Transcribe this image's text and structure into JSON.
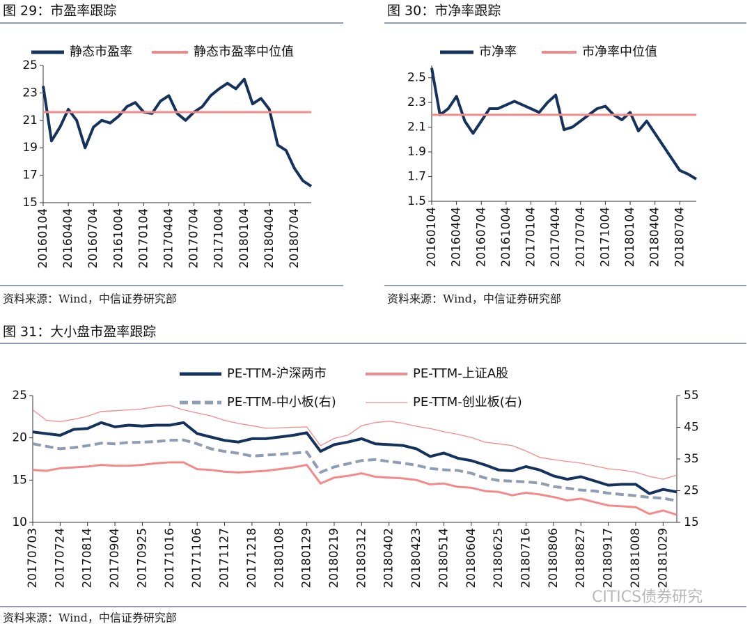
{
  "chart_data": [
    {
      "type": "line",
      "title": "图 29：市盈率跟踪",
      "categories": [
        "20160104",
        null,
        null,
        "20160404",
        null,
        null,
        "20160704",
        null,
        null,
        "20161004",
        null,
        null,
        "20170104",
        null,
        null,
        "20170404",
        null,
        null,
        "20170704",
        null,
        null,
        "20171004",
        null,
        null,
        "20180104",
        null,
        null,
        "20180404",
        null,
        null,
        "20180704",
        null,
        null
      ],
      "series": [
        {
          "name": "静态市盈率",
          "color": "#14325c",
          "values": [
            23.5,
            19.5,
            20.5,
            21.8,
            21.0,
            19.0,
            20.5,
            21.0,
            20.8,
            21.3,
            22.0,
            22.3,
            21.6,
            21.5,
            22.4,
            22.8,
            21.5,
            21.0,
            21.6,
            22.0,
            22.8,
            23.3,
            23.7,
            23.3,
            24.0,
            22.2,
            22.6,
            21.8,
            19.2,
            18.8,
            17.5,
            16.6,
            16.2
          ]
        },
        {
          "name": "静态市盈率中位值",
          "color": "#f4898a",
          "value": 21.6
        }
      ],
      "ylim": [
        15,
        25
      ],
      "yticks": [
        15,
        17,
        19,
        21,
        23,
        25
      ],
      "source": "资料来源：Wind，中信证券研究部"
    },
    {
      "type": "line",
      "title": "图 30：市净率跟踪",
      "categories": [
        "20160104",
        null,
        null,
        "20160404",
        null,
        null,
        "20160704",
        null,
        null,
        "20161004",
        null,
        null,
        "20170104",
        null,
        null,
        "20170404",
        null,
        null,
        "20170704",
        null,
        null,
        "20171004",
        null,
        null,
        "20180104",
        null,
        null,
        "20180404",
        null,
        null,
        "20180704",
        null,
        null
      ],
      "series": [
        {
          "name": "市净率",
          "color": "#14325c",
          "values": [
            2.58,
            2.2,
            2.25,
            2.35,
            2.15,
            2.05,
            2.15,
            2.25,
            2.25,
            2.28,
            2.31,
            2.28,
            2.25,
            2.22,
            2.3,
            2.36,
            2.08,
            2.1,
            2.15,
            2.2,
            2.25,
            2.27,
            2.2,
            2.16,
            2.22,
            2.07,
            2.15,
            2.05,
            1.95,
            1.85,
            1.75,
            1.72,
            1.68
          ]
        },
        {
          "name": "市净率中位值",
          "color": "#f4898a",
          "value": 2.2
        }
      ],
      "ylim": [
        1.5,
        2.6
      ],
      "yticks": [
        1.5,
        1.7,
        1.9,
        2.1,
        2.3,
        2.5
      ],
      "source": "资料来源：Wind，中信证券研究部"
    },
    {
      "type": "line",
      "title": "图 31：大小盘市盈率跟踪",
      "categories": [
        "20170703",
        null,
        "20170724",
        null,
        "20170814",
        null,
        "20170904",
        null,
        "20170925",
        null,
        "20171016",
        null,
        "20171106",
        null,
        "20171127",
        null,
        "20171218",
        null,
        "20180108",
        null,
        "20180129",
        null,
        "20180219",
        null,
        "20180312",
        null,
        "20180402",
        null,
        "20180423",
        null,
        "20180514",
        null,
        "20180604",
        null,
        "20180625",
        null,
        "20180716",
        null,
        "20180806",
        null,
        "20180827",
        null,
        "20180917",
        null,
        "20181008",
        null,
        "20181029",
        null
      ],
      "series": [
        {
          "name": "PE-TTM-沪深两市",
          "color": "#14325c",
          "width": 4,
          "values": [
            20.7,
            20.5,
            20.3,
            21.0,
            21.1,
            21.8,
            21.3,
            21.5,
            21.4,
            21.5,
            21.5,
            21.8,
            20.5,
            20.1,
            19.7,
            19.5,
            19.9,
            19.9,
            20.1,
            20.3,
            20.6,
            18.4,
            19.2,
            19.5,
            19.9,
            19.3,
            19.2,
            19.1,
            18.7,
            17.8,
            18.2,
            17.6,
            17.3,
            16.8,
            16.2,
            16.1,
            16.6,
            16.2,
            15.5,
            15.1,
            15.4,
            14.9,
            14.4,
            14.5,
            14.5,
            13.4,
            13.9,
            13.6
          ]
        },
        {
          "name": "PE-TTM-上证A股",
          "color": "#f4898a",
          "width": 3,
          "values": [
            16.2,
            16.1,
            16.4,
            16.5,
            16.6,
            16.8,
            16.7,
            16.7,
            16.8,
            17.0,
            17.1,
            17.1,
            16.3,
            16.2,
            16.0,
            15.9,
            16.0,
            16.1,
            16.3,
            16.5,
            16.8,
            14.6,
            15.3,
            15.5,
            15.8,
            15.4,
            15.3,
            15.2,
            15.0,
            14.5,
            14.6,
            14.2,
            14.1,
            13.7,
            13.6,
            13.2,
            13.5,
            13.3,
            13.0,
            12.6,
            12.8,
            12.4,
            12.0,
            11.9,
            11.8,
            11.0,
            11.4,
            10.9
          ]
        },
        {
          "name": "PE-TTM-中小板(右)",
          "color": "#8e9db3",
          "width": 4,
          "dashed": true,
          "axis": "y2",
          "values": [
            39.8,
            39.0,
            38.2,
            38.6,
            39.2,
            40.0,
            39.8,
            40.2,
            40.3,
            40.5,
            40.9,
            41.0,
            39.8,
            38.2,
            37.4,
            36.8,
            35.9,
            36.2,
            36.5,
            36.8,
            37.2,
            30.8,
            32.5,
            33.5,
            34.5,
            34.8,
            34.2,
            33.7,
            33.0,
            32.0,
            31.6,
            31.4,
            30.5,
            29.0,
            28.2,
            28.0,
            27.8,
            27.4,
            26.3,
            25.8,
            25.2,
            24.9,
            24.2,
            23.8,
            23.4,
            22.9,
            22.6,
            21.8
          ]
        },
        {
          "name": "PE-TTM-创业板(右)",
          "color": "#f4898a",
          "width": 1.3,
          "axis": "y2",
          "values": [
            50.5,
            47.2,
            46.8,
            47.5,
            48.5,
            50.0,
            50.2,
            50.5,
            50.8,
            51.5,
            51.9,
            50.5,
            49.5,
            48.6,
            47.2,
            46.2,
            45.5,
            44.7,
            44.8,
            45.0,
            45.1,
            39.2,
            41.5,
            42.5,
            45.5,
            46.5,
            46.9,
            46.3,
            45.3,
            44.6,
            43.6,
            42.8,
            41.8,
            40.3,
            39.8,
            39.2,
            37.5,
            35.5,
            34.8,
            34.2,
            33.7,
            32.8,
            31.9,
            31.5,
            30.8,
            29.5,
            28.6,
            29.9
          ]
        }
      ],
      "ylim": [
        10,
        25
      ],
      "yticks": [
        10,
        15,
        20,
        25
      ],
      "y2lim": [
        15,
        55
      ],
      "y2ticks": [
        15,
        25,
        35,
        45,
        55
      ],
      "source": "资料来源：Wind，中信证券研究部"
    }
  ],
  "watermark": "CITICS债券研究"
}
